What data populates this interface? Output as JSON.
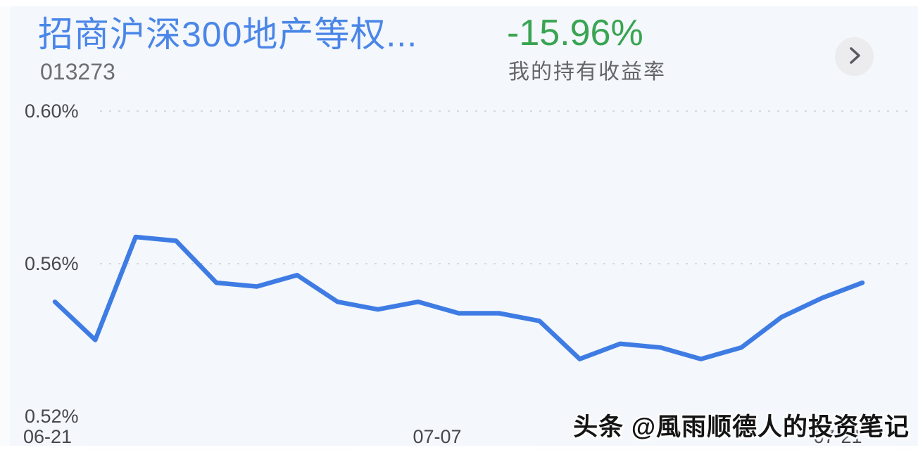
{
  "header": {
    "fund_name": "招商沪深300地产等权...",
    "fund_code": "013273",
    "return_value": "-15.96%",
    "return_label": "我的持有收益率"
  },
  "nav": {
    "next_icon": "chevron-right"
  },
  "chart_data": {
    "type": "line",
    "title": "",
    "xlabel": "",
    "ylabel": "",
    "unit": "%",
    "series": [
      {
        "name": "收益率",
        "values": [
          0.55,
          0.54,
          0.567,
          0.566,
          0.555,
          0.554,
          0.557,
          0.55,
          0.548,
          0.55,
          0.547,
          0.547,
          0.545,
          0.535,
          0.539,
          0.538,
          0.535,
          0.538,
          0.546,
          0.551,
          0.555
        ]
      }
    ],
    "x_tick_labels": [
      "06-21",
      "07-07",
      "07-21"
    ],
    "y_tick_labels": [
      "0.60%",
      "0.56%",
      "0.52%"
    ],
    "y_tick_values": [
      0.6,
      0.56,
      0.52
    ],
    "ylim": [
      0.52,
      0.6
    ],
    "gridlines": {
      "y_values": [
        0.6,
        0.56
      ],
      "style": "dotted"
    },
    "legend": "none",
    "line_color": "#3e7ce4",
    "gridline_color": "#d8d9de"
  },
  "watermark": {
    "text": "头条 @風雨顺德人的投资笔记"
  },
  "colors": {
    "background": "#f4f7fb",
    "fund_name": "#4a86e8",
    "return_value_green": "#39a452",
    "secondary_text": "#6d6d72",
    "axis_text": "#47474f"
  }
}
